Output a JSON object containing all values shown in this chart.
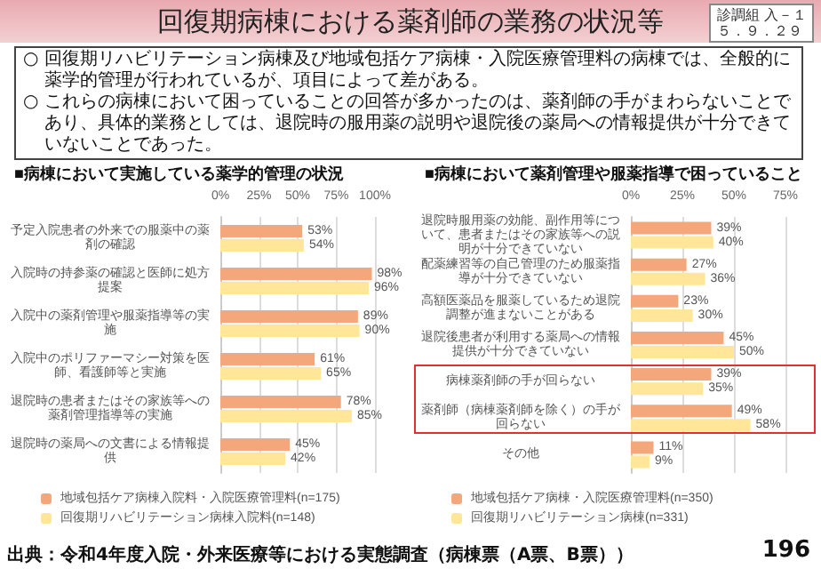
{
  "chart_data": [
    {
      "type": "other",
      "title": "回復期病棟における薬剤師の業務の状況等",
      "annotations": [
        "診調組 入－１",
        "５．９．２９",
        "○ 回復期リハビリテーション病棟及び地域包括ケア病棟・入院医療管理料の病棟では、全般的に薬学的管理が行われているが、項目によって差がある。",
        "○ これらの病棟において困っていることの回答が多かったのは、薬剤師の手がまわらないことであり、具体的業務としては、退院時の服用薬の説明や退院後の薬局への情報提供が十分できていないことであった。",
        "出典：令和4年度入院・外来医療等における実態調査（病棟票（A票、B票））",
        "196"
      ]
    },
    {
      "type": "bar",
      "orientation": "horizontal",
      "title": "■病棟において実施している薬学的管理の状況",
      "categories": [
        "予定入院患者の外来での服薬中の薬剤の確認",
        "入院時の持参薬の確認と医師に処方提案",
        "入院中の薬剤管理や服薬指導等の実施",
        "入院中のポリファーマシー対策を医師、看護師等と実施",
        "退院時の患者またはその家族等への薬剤管理指導等の実施",
        "退院時の薬局への文書による情報提供"
      ],
      "series": [
        {
          "name": "地域包括ケア病棟入院料・入院医療管理料(n=175)",
          "color": "#f4a77a",
          "values": [
            53,
            98,
            89,
            61,
            78,
            45
          ],
          "value_labels": [
            "53%",
            "98%",
            "89%",
            "61%",
            "78%",
            "45%"
          ]
        },
        {
          "name": "回復期リハビリテーション病棟入院料(n=148)",
          "color": "#ffe699",
          "values": [
            54,
            96,
            90,
            65,
            85,
            42
          ],
          "value_labels": [
            "54%",
            "96%",
            "90%",
            "65%",
            "85%",
            "42%"
          ]
        }
      ],
      "xlim": [
        0,
        100
      ],
      "xticks": [
        {
          "value": 0,
          "label": "0%"
        },
        {
          "value": 25,
          "label": "25%"
        },
        {
          "value": 50,
          "label": "50%"
        },
        {
          "value": 75,
          "label": "75%"
        },
        {
          "value": 100,
          "label": "100%"
        }
      ],
      "grid": "x",
      "legend": "bottom"
    },
    {
      "type": "bar",
      "orientation": "horizontal",
      "title": "■病棟において薬剤管理や服薬指導で困っていること",
      "categories": [
        "退院時服用薬の効能、副作用等について、患者またはその家族等への説明が十分できていない",
        "配薬練習等の自己管理のため服薬指導が十分できていない",
        "高額医薬品を服薬しているため退院調整が進まないことがある",
        "退院後患者が利用する薬局への情報提供が十分できていない",
        "病棟薬剤師の手が回らない",
        "薬剤師（病棟薬剤師を除く）の手が回らない",
        "その他"
      ],
      "series": [
        {
          "name": "地域包括ケア病棟・入院医療管理料(n=350)",
          "color": "#f4a77a",
          "values": [
            39,
            27,
            23,
            45,
            39,
            49,
            11
          ],
          "value_labels": [
            "39%",
            "27%",
            "23%",
            "45%",
            "39%",
            "49%",
            "11%"
          ]
        },
        {
          "name": "回復期リハビリテーション病棟(n=331)",
          "color": "#ffe699",
          "values": [
            40,
            36,
            30,
            50,
            35,
            58,
            9
          ],
          "value_labels": [
            "40%",
            "36%",
            "30%",
            "50%",
            "35%",
            "58%",
            "9%"
          ]
        }
      ],
      "xlim": [
        0,
        75
      ],
      "xticks": [
        {
          "value": 0,
          "label": "0%"
        },
        {
          "value": 25,
          "label": "25%"
        },
        {
          "value": 50,
          "label": "50%"
        },
        {
          "value": 75,
          "label": "75%"
        }
      ],
      "grid": "x",
      "legend": "bottom"
    }
  ]
}
